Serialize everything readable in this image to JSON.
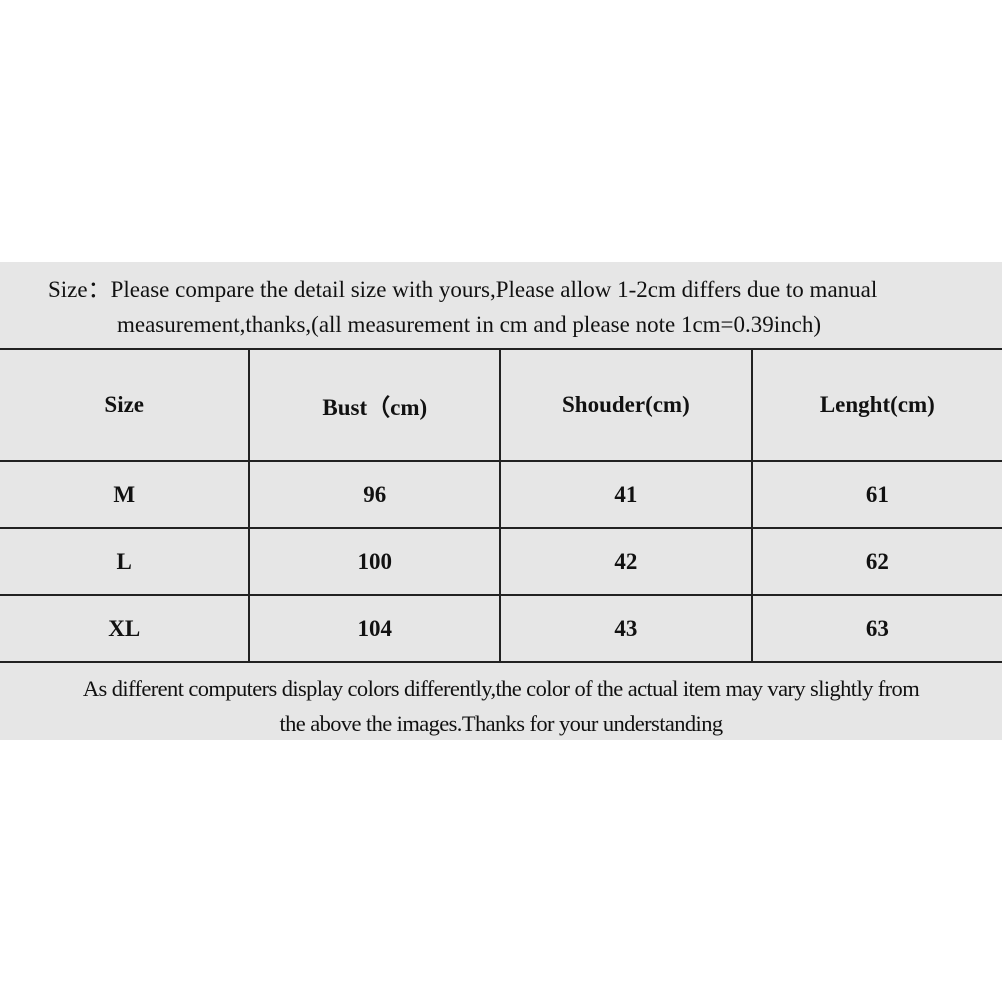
{
  "intro": {
    "line1": "Size：Please compare the detail size with yours,Please allow 1-2cm differs due to manual",
    "line2": "measurement,thanks,(all measurement in cm and please note 1cm=0.39inch)"
  },
  "table": {
    "headers": [
      "Size",
      "Bust（cm)",
      "Shouder(cm)",
      "Lenght(cm)"
    ],
    "rows": [
      [
        "M",
        "96",
        "41",
        "61"
      ],
      [
        "L",
        "100",
        "42",
        "62"
      ],
      [
        "XL",
        "104",
        "43",
        "63"
      ]
    ]
  },
  "footer": {
    "line1": "As different computers display colors differently,the color of the actual item may vary slightly from",
    "line2": "the above the images.Thanks for your understanding"
  },
  "colors": {
    "background": "#e6e6e6",
    "border": "#222222"
  }
}
